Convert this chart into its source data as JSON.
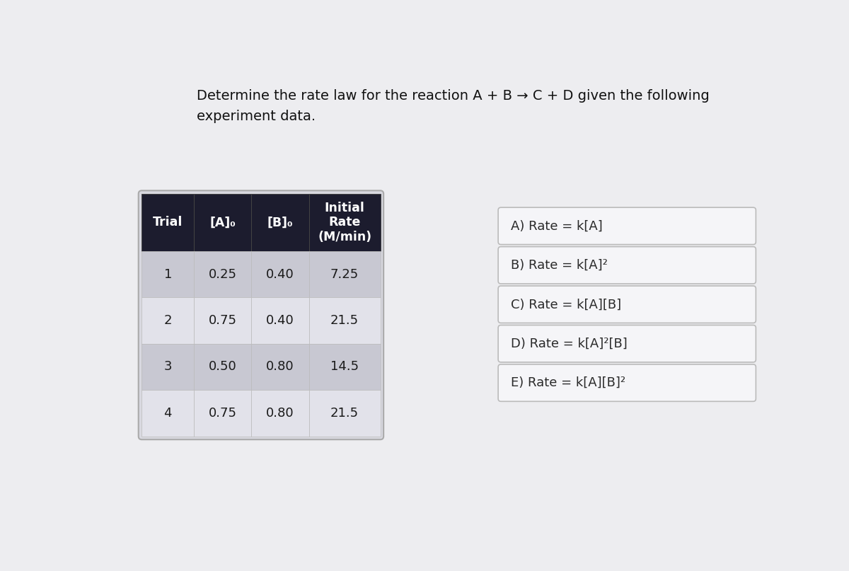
{
  "title_line1": "Determine the rate law for the reaction A + B → C + D given the following",
  "title_line2": "experiment data.",
  "background_color": "#ededf0",
  "table": {
    "headers": [
      "Trial",
      "[A]₀",
      "[B]₀",
      "Initial\nRate\n(M/min)"
    ],
    "rows": [
      [
        "1",
        "0.25",
        "0.40",
        "7.25"
      ],
      [
        "2",
        "0.75",
        "0.40",
        "21.5"
      ],
      [
        "3",
        "0.50",
        "0.80",
        "14.5"
      ],
      [
        "4",
        "0.75",
        "0.80",
        "21.5"
      ]
    ],
    "header_bg": "#1c1c2e",
    "header_text": "#ffffff",
    "row_bg_odd": "#c8c8d2",
    "row_bg_even": "#e2e2ea",
    "outer_bg": "#d8d8e0",
    "border_color": "#aaaaaa",
    "text_color": "#1a1a1a"
  },
  "options": [
    "A) Rate = k[A]",
    "B) Rate = k[A]²",
    "C) Rate = k[A][B]",
    "D) Rate = k[A]²[B]",
    "E) Rate = k[A][B]²"
  ],
  "option_box_bg": "#f5f5f8",
  "option_border_color": "#bbbbbb",
  "option_text_color": "#2a2a2a",
  "title_color": "#111111"
}
